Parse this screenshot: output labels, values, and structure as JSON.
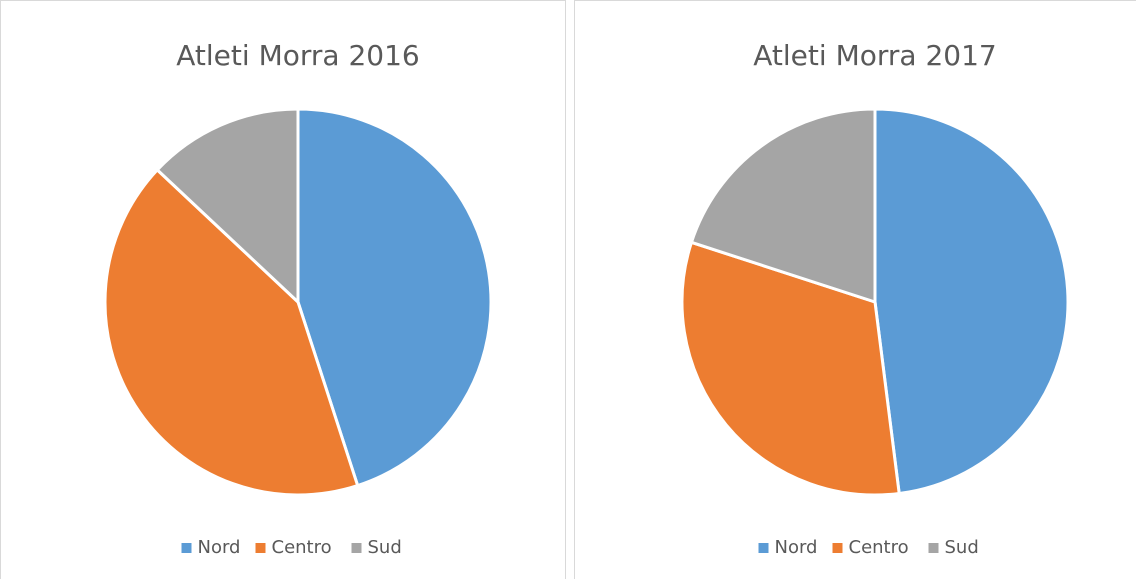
{
  "chart_data": [
    {
      "type": "pie",
      "title": "Atleti Morra 2016",
      "categories": [
        "Nord",
        "Centro",
        "Sud"
      ],
      "values": [
        45,
        42,
        13
      ],
      "colors": [
        "#5b9bd5",
        "#ed7d31",
        "#a5a5a5"
      ],
      "legend": "bottom"
    },
    {
      "type": "pie",
      "title": "Atleti Morra 2017",
      "categories": [
        "Nord",
        "Centro",
        "Sud"
      ],
      "values": [
        48,
        32,
        20
      ],
      "colors": [
        "#5b9bd5",
        "#ed7d31",
        "#a5a5a5"
      ],
      "legend": "bottom"
    }
  ]
}
